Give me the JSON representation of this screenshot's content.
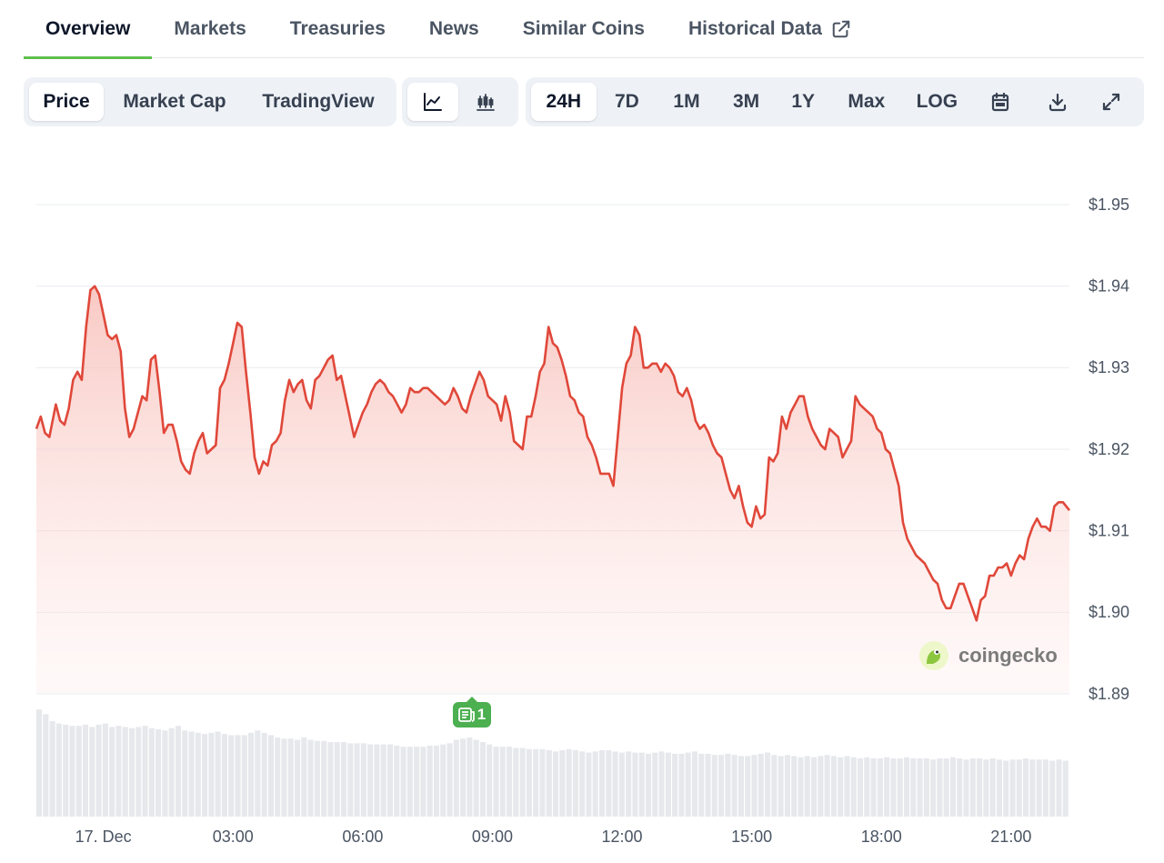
{
  "tabs": [
    {
      "label": "Overview"
    },
    {
      "label": "Markets"
    },
    {
      "label": "Treasuries"
    },
    {
      "label": "News"
    },
    {
      "label": "Similar Coins"
    },
    {
      "label": "Historical Data"
    }
  ],
  "toolbar": {
    "views": [
      "Price",
      "Market Cap",
      "TradingView"
    ],
    "ranges": [
      "24H",
      "7D",
      "1M",
      "3M",
      "1Y",
      "Max",
      "LOG"
    ]
  },
  "watermark": "coingecko",
  "news_badge": "1",
  "colors": {
    "line": "#e0483a",
    "fill_top": "#f9c7c2",
    "volume": "#e6e8ec",
    "accent": "#5fbf4f",
    "news": "#4caf50"
  },
  "icons": [
    "external-link-icon",
    "line-chart-icon",
    "candlestick-icon",
    "calendar-icon",
    "download-icon",
    "expand-icon",
    "coingecko-logo-icon",
    "newspaper-icon"
  ],
  "chart_data": {
    "type": "line",
    "xlabel": "",
    "ylabel": "",
    "ylim": [
      1.89,
      1.95
    ],
    "y_ticks": [
      "$1.95",
      "$1.94",
      "$1.93",
      "$1.92",
      "$1.91",
      "$1.90",
      "$1.89"
    ],
    "y_tick_values": [
      1.95,
      1.94,
      1.93,
      1.92,
      1.91,
      1.9,
      1.89
    ],
    "x_range_hours": [
      -1.55,
      22.35
    ],
    "x_ticks": [
      {
        "label": "17. Dec",
        "h": 0
      },
      {
        "label": "03:00",
        "h": 3
      },
      {
        "label": "06:00",
        "h": 6
      },
      {
        "label": "09:00",
        "h": 9
      },
      {
        "label": "12:00",
        "h": 12
      },
      {
        "label": "15:00",
        "h": 15
      },
      {
        "label": "18:00",
        "h": 18
      },
      {
        "label": "21:00",
        "h": 21
      }
    ],
    "grid": true,
    "series": [
      {
        "points": [
          [
            -1.55,
            1.9225
          ],
          [
            -1.45,
            1.924
          ],
          [
            -1.35,
            1.922
          ],
          [
            -1.25,
            1.9215
          ],
          [
            -1.1,
            1.9255
          ],
          [
            -1.0,
            1.9235
          ],
          [
            -0.9,
            1.923
          ],
          [
            -0.8,
            1.925
          ],
          [
            -0.7,
            1.9285
          ],
          [
            -0.6,
            1.9295
          ],
          [
            -0.5,
            1.9285
          ],
          [
            -0.4,
            1.935
          ],
          [
            -0.3,
            1.9395
          ],
          [
            -0.2,
            1.94
          ],
          [
            -0.1,
            1.939
          ],
          [
            0.0,
            1.9365
          ],
          [
            0.1,
            1.934
          ],
          [
            0.2,
            1.9335
          ],
          [
            0.3,
            1.934
          ],
          [
            0.4,
            1.932
          ],
          [
            0.5,
            1.925
          ],
          [
            0.6,
            1.9215
          ],
          [
            0.7,
            1.9225
          ],
          [
            0.8,
            1.9245
          ],
          [
            0.9,
            1.9265
          ],
          [
            1.0,
            1.926
          ],
          [
            1.1,
            1.931
          ],
          [
            1.2,
            1.9315
          ],
          [
            1.3,
            1.927
          ],
          [
            1.4,
            1.922
          ],
          [
            1.5,
            1.923
          ],
          [
            1.6,
            1.923
          ],
          [
            1.7,
            1.921
          ],
          [
            1.8,
            1.9185
          ],
          [
            1.9,
            1.9175
          ],
          [
            2.0,
            1.917
          ],
          [
            2.1,
            1.9195
          ],
          [
            2.2,
            1.921
          ],
          [
            2.3,
            1.922
          ],
          [
            2.4,
            1.9195
          ],
          [
            2.5,
            1.92
          ],
          [
            2.6,
            1.9205
          ],
          [
            2.7,
            1.9275
          ],
          [
            2.8,
            1.9285
          ],
          [
            2.9,
            1.9305
          ],
          [
            3.0,
            1.933
          ],
          [
            3.1,
            1.9355
          ],
          [
            3.2,
            1.935
          ],
          [
            3.3,
            1.9295
          ],
          [
            3.4,
            1.9245
          ],
          [
            3.5,
            1.919
          ],
          [
            3.6,
            1.917
          ],
          [
            3.7,
            1.9185
          ],
          [
            3.8,
            1.918
          ],
          [
            3.9,
            1.9205
          ],
          [
            4.0,
            1.921
          ],
          [
            4.1,
            1.922
          ],
          [
            4.2,
            1.926
          ],
          [
            4.3,
            1.9285
          ],
          [
            4.4,
            1.927
          ],
          [
            4.5,
            1.928
          ],
          [
            4.6,
            1.9285
          ],
          [
            4.7,
            1.926
          ],
          [
            4.8,
            1.925
          ],
          [
            4.9,
            1.9285
          ],
          [
            5.0,
            1.929
          ],
          [
            5.1,
            1.93
          ],
          [
            5.2,
            1.931
          ],
          [
            5.3,
            1.9315
          ],
          [
            5.4,
            1.9285
          ],
          [
            5.5,
            1.929
          ],
          [
            5.6,
            1.9265
          ],
          [
            5.7,
            1.924
          ],
          [
            5.8,
            1.9215
          ],
          [
            5.9,
            1.923
          ],
          [
            6.0,
            1.9245
          ],
          [
            6.1,
            1.9255
          ],
          [
            6.2,
            1.927
          ],
          [
            6.3,
            1.928
          ],
          [
            6.4,
            1.9285
          ],
          [
            6.5,
            1.928
          ],
          [
            6.6,
            1.927
          ],
          [
            6.7,
            1.9265
          ],
          [
            6.8,
            1.9255
          ],
          [
            6.9,
            1.9245
          ],
          [
            7.0,
            1.9255
          ],
          [
            7.1,
            1.9275
          ],
          [
            7.2,
            1.927
          ],
          [
            7.3,
            1.927
          ],
          [
            7.4,
            1.9275
          ],
          [
            7.5,
            1.9275
          ],
          [
            7.6,
            1.927
          ],
          [
            7.7,
            1.9265
          ],
          [
            7.8,
            1.926
          ],
          [
            7.9,
            1.9255
          ],
          [
            8.0,
            1.926
          ],
          [
            8.1,
            1.9275
          ],
          [
            8.2,
            1.9265
          ],
          [
            8.3,
            1.925
          ],
          [
            8.4,
            1.9245
          ],
          [
            8.5,
            1.9265
          ],
          [
            8.6,
            1.928
          ],
          [
            8.7,
            1.9295
          ],
          [
            8.8,
            1.9285
          ],
          [
            8.9,
            1.9265
          ],
          [
            9.0,
            1.926
          ],
          [
            9.1,
            1.9255
          ],
          [
            9.2,
            1.9235
          ],
          [
            9.3,
            1.9265
          ],
          [
            9.4,
            1.9245
          ],
          [
            9.5,
            1.921
          ],
          [
            9.6,
            1.9205
          ],
          [
            9.7,
            1.92
          ],
          [
            9.8,
            1.924
          ],
          [
            9.9,
            1.924
          ],
          [
            10.0,
            1.9265
          ],
          [
            10.1,
            1.9295
          ],
          [
            10.2,
            1.9305
          ],
          [
            10.3,
            1.935
          ],
          [
            10.4,
            1.933
          ],
          [
            10.5,
            1.9325
          ],
          [
            10.6,
            1.931
          ],
          [
            10.7,
            1.929
          ],
          [
            10.8,
            1.9265
          ],
          [
            10.9,
            1.926
          ],
          [
            11.0,
            1.9245
          ],
          [
            11.1,
            1.924
          ],
          [
            11.2,
            1.9215
          ],
          [
            11.3,
            1.9205
          ],
          [
            11.4,
            1.919
          ],
          [
            11.5,
            1.917
          ],
          [
            11.6,
            1.917
          ],
          [
            11.7,
            1.917
          ],
          [
            11.8,
            1.9155
          ],
          [
            11.9,
            1.9215
          ],
          [
            12.0,
            1.9275
          ],
          [
            12.1,
            1.9305
          ],
          [
            12.2,
            1.9315
          ],
          [
            12.3,
            1.935
          ],
          [
            12.4,
            1.934
          ],
          [
            12.5,
            1.93
          ],
          [
            12.6,
            1.93
          ],
          [
            12.7,
            1.9305
          ],
          [
            12.8,
            1.9305
          ],
          [
            12.9,
            1.9295
          ],
          [
            13.0,
            1.9305
          ],
          [
            13.1,
            1.93
          ],
          [
            13.2,
            1.929
          ],
          [
            13.3,
            1.927
          ],
          [
            13.4,
            1.9265
          ],
          [
            13.5,
            1.9275
          ],
          [
            13.6,
            1.926
          ],
          [
            13.7,
            1.9235
          ],
          [
            13.8,
            1.9225
          ],
          [
            13.9,
            1.923
          ],
          [
            14.0,
            1.922
          ],
          [
            14.1,
            1.9205
          ],
          [
            14.2,
            1.9195
          ],
          [
            14.3,
            1.919
          ],
          [
            14.4,
            1.917
          ],
          [
            14.5,
            1.915
          ],
          [
            14.6,
            1.914
          ],
          [
            14.7,
            1.9155
          ],
          [
            14.8,
            1.913
          ],
          [
            14.9,
            1.911
          ],
          [
            15.0,
            1.9105
          ],
          [
            15.1,
            1.913
          ],
          [
            15.2,
            1.9115
          ],
          [
            15.3,
            1.912
          ],
          [
            15.4,
            1.919
          ],
          [
            15.5,
            1.9185
          ],
          [
            15.6,
            1.9195
          ],
          [
            15.7,
            1.924
          ],
          [
            15.8,
            1.9225
          ],
          [
            15.9,
            1.9245
          ],
          [
            16.0,
            1.9255
          ],
          [
            16.1,
            1.9265
          ],
          [
            16.2,
            1.9265
          ],
          [
            16.3,
            1.924
          ],
          [
            16.4,
            1.9225
          ],
          [
            16.5,
            1.9215
          ],
          [
            16.6,
            1.9205
          ],
          [
            16.7,
            1.92
          ],
          [
            16.8,
            1.9225
          ],
          [
            16.9,
            1.922
          ],
          [
            17.0,
            1.9215
          ],
          [
            17.1,
            1.919
          ],
          [
            17.2,
            1.92
          ],
          [
            17.3,
            1.921
          ],
          [
            17.4,
            1.9265
          ],
          [
            17.5,
            1.9255
          ],
          [
            17.6,
            1.925
          ],
          [
            17.7,
            1.9245
          ],
          [
            17.8,
            1.924
          ],
          [
            17.9,
            1.9225
          ],
          [
            18.0,
            1.922
          ],
          [
            18.1,
            1.92
          ],
          [
            18.2,
            1.9195
          ],
          [
            18.3,
            1.9175
          ],
          [
            18.4,
            1.9155
          ],
          [
            18.5,
            1.911
          ],
          [
            18.6,
            1.909
          ],
          [
            18.7,
            1.908
          ],
          [
            18.8,
            1.907
          ],
          [
            18.9,
            1.9065
          ],
          [
            19.0,
            1.906
          ],
          [
            19.1,
            1.905
          ],
          [
            19.2,
            1.904
          ],
          [
            19.3,
            1.9035
          ],
          [
            19.4,
            1.9015
          ],
          [
            19.5,
            1.9005
          ],
          [
            19.6,
            1.9005
          ],
          [
            19.7,
            1.902
          ],
          [
            19.8,
            1.9035
          ],
          [
            19.9,
            1.9035
          ],
          [
            20.0,
            1.902
          ],
          [
            20.1,
            1.9005
          ],
          [
            20.2,
            1.899
          ],
          [
            20.3,
            1.9015
          ],
          [
            20.4,
            1.902
          ],
          [
            20.5,
            1.9045
          ],
          [
            20.6,
            1.9045
          ],
          [
            20.7,
            1.9055
          ],
          [
            20.8,
            1.9055
          ],
          [
            20.9,
            1.906
          ],
          [
            21.0,
            1.9045
          ],
          [
            21.1,
            1.906
          ],
          [
            21.2,
            1.907
          ],
          [
            21.3,
            1.9065
          ],
          [
            21.4,
            1.909
          ],
          [
            21.5,
            1.9105
          ],
          [
            21.6,
            1.9115
          ],
          [
            21.7,
            1.9105
          ],
          [
            21.8,
            1.9105
          ],
          [
            21.9,
            1.91
          ],
          [
            22.0,
            1.913
          ],
          [
            22.1,
            1.9135
          ],
          [
            22.2,
            1.9135
          ],
          [
            22.35,
            1.9125
          ]
        ]
      }
    ],
    "volume": {
      "note_free": true,
      "relative_heights": [
        0.92,
        0.88,
        0.82,
        0.8,
        0.79,
        0.78,
        0.78,
        0.79,
        0.77,
        0.79,
        0.8,
        0.77,
        0.78,
        0.77,
        0.76,
        0.77,
        0.78,
        0.76,
        0.75,
        0.74,
        0.76,
        0.78,
        0.74,
        0.73,
        0.72,
        0.71,
        0.72,
        0.73,
        0.71,
        0.7,
        0.7,
        0.7,
        0.72,
        0.74,
        0.72,
        0.7,
        0.68,
        0.67,
        0.67,
        0.66,
        0.68,
        0.66,
        0.65,
        0.65,
        0.64,
        0.64,
        0.64,
        0.63,
        0.63,
        0.63,
        0.62,
        0.62,
        0.62,
        0.62,
        0.61,
        0.6,
        0.6,
        0.6,
        0.6,
        0.61,
        0.61,
        0.62,
        0.63,
        0.66,
        0.67,
        0.68,
        0.66,
        0.64,
        0.62,
        0.6,
        0.6,
        0.6,
        0.59,
        0.59,
        0.58,
        0.58,
        0.58,
        0.57,
        0.56,
        0.57,
        0.58,
        0.57,
        0.56,
        0.55,
        0.56,
        0.57,
        0.57,
        0.56,
        0.55,
        0.56,
        0.55,
        0.55,
        0.54,
        0.55,
        0.56,
        0.55,
        0.54,
        0.54,
        0.55,
        0.56,
        0.54,
        0.54,
        0.53,
        0.53,
        0.54,
        0.53,
        0.52,
        0.52,
        0.53,
        0.54,
        0.55,
        0.53,
        0.52,
        0.53,
        0.52,
        0.51,
        0.52,
        0.51,
        0.52,
        0.53,
        0.52,
        0.51,
        0.52,
        0.51,
        0.5,
        0.51,
        0.5,
        0.5,
        0.51,
        0.5,
        0.5,
        0.51,
        0.5,
        0.5,
        0.5,
        0.49,
        0.5,
        0.5,
        0.51,
        0.5,
        0.49,
        0.5,
        0.5,
        0.49,
        0.5,
        0.49,
        0.48,
        0.49,
        0.49,
        0.5,
        0.49,
        0.49,
        0.49,
        0.48,
        0.49,
        0.48
      ]
    }
  }
}
